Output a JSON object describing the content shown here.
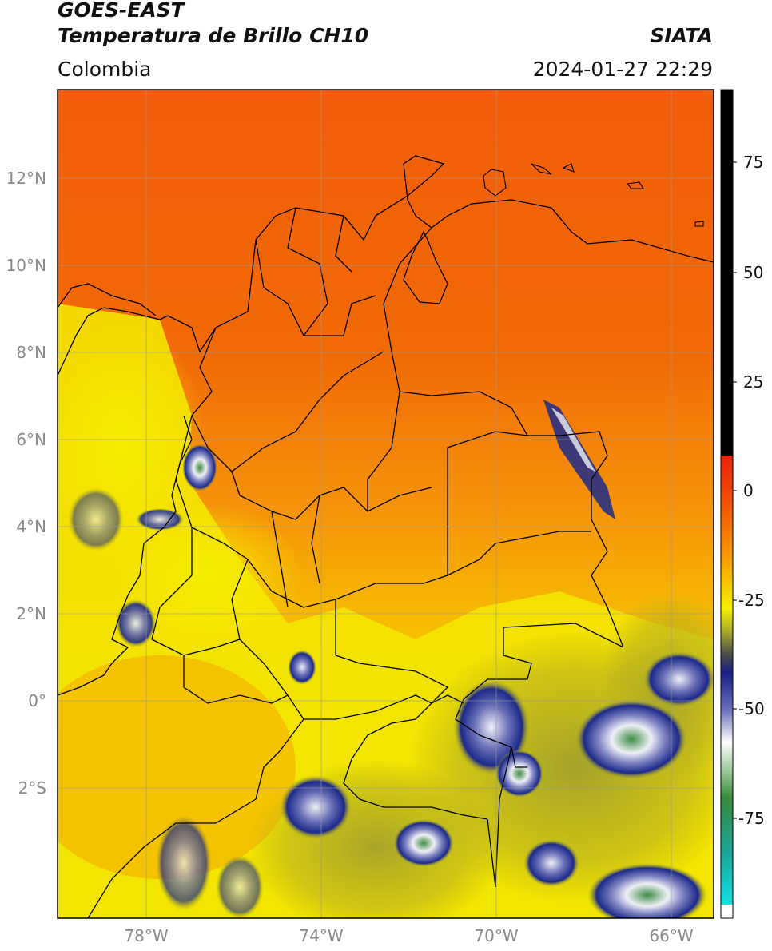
{
  "header": {
    "satellite": "GOES-EAST",
    "product": "Temperatura de Brillo CH10",
    "region": "Colombia",
    "agency": "SIATA",
    "datetime": "2024-01-27 22:29"
  },
  "axes": {
    "lat_ticks": [
      "12°N",
      "10°N",
      "8°N",
      "6°N",
      "4°N",
      "2°N",
      "0°",
      "2°S"
    ],
    "lon_ticks": [
      "78°W",
      "74°W",
      "70°W",
      "66°W"
    ]
  },
  "colorbar": {
    "ticks": [
      "75",
      "50",
      "25",
      "0",
      "-25",
      "-50",
      "-75"
    ],
    "colors": {
      "black": "#000000",
      "red": "#e8220f",
      "orange": "#f47a00",
      "yellow": "#f7f000",
      "olive": "#a9a92a",
      "navy": "#1a1f86",
      "white": "#ffffff",
      "green": "#3a8a3a",
      "teal": "#1aa59a",
      "cyan": "#11e0e0"
    }
  },
  "map_colors": {
    "sea_north": "#f25c0a",
    "land_orange": "#f7900a",
    "pacific": "#f7b500",
    "yellow": "#f5ee00",
    "olive": "#b8b020",
    "cloud_navy": "#1c2a8a",
    "cloud_white": "#eef0f6",
    "cloud_green": "#3e8d44",
    "border": "#000000",
    "grid": "#9a9a9a"
  }
}
